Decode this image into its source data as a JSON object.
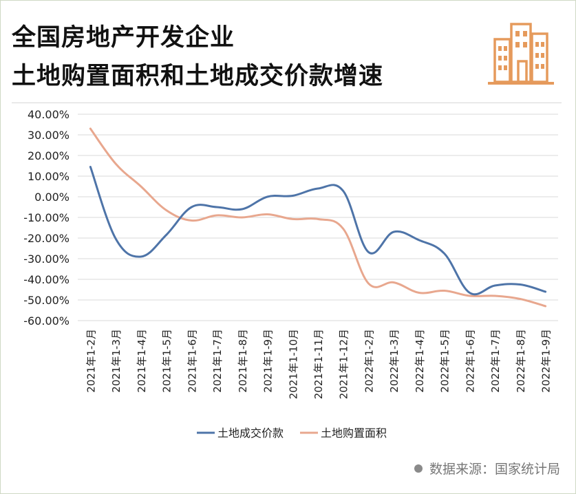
{
  "header": {
    "title_line1": "全国房地产开发企业",
    "title_line2": "土地购置面积和土地成交价款增速",
    "logo_icon": "buildings-icon"
  },
  "footer": {
    "source": "数据来源：国家统计局"
  },
  "chart_data": {
    "type": "line",
    "title": "",
    "xlabel": "",
    "ylabel": "",
    "ylim": [
      -60,
      40
    ],
    "yticks": [
      40,
      30,
      20,
      10,
      0,
      -10,
      -20,
      -30,
      -40,
      -50,
      -60
    ],
    "ytick_labels": [
      "40.00%",
      "30.00%",
      "20.00%",
      "10.00%",
      "0.00%",
      "-10.00%",
      "-20.00%",
      "-30.00%",
      "-40.00%",
      "-50.00%",
      "-60.00%"
    ],
    "grid": true,
    "legend_position": "bottom",
    "categories": [
      "2021年1-2月",
      "2021年1-3月",
      "2021年1-4月",
      "2021年1-5月",
      "2021年1-6月",
      "2021年1-7月",
      "2021年1-8月",
      "2021年1-9月",
      "2021年1-10月",
      "2021年1-11月",
      "2021年1-12月",
      "2022年1-2月",
      "2022年1-3月",
      "2022年1-4月",
      "2022年1-5月",
      "2022年1-6月",
      "2022年1-7月",
      "2022年1-8月",
      "2022年1-9月"
    ],
    "series": [
      {
        "name": "土地成交价款",
        "color": "#4e74a8",
        "values": [
          14.5,
          -20.3,
          -29.0,
          -18.5,
          -5.0,
          -5.0,
          -6.0,
          0.0,
          0.5,
          4.0,
          2.8,
          -26.8,
          -17.0,
          -21.0,
          -27.5,
          -46.5,
          -43.0,
          -42.5,
          -46.0
        ]
      },
      {
        "name": "土地购置面积",
        "color": "#e8a78e",
        "values": [
          33.0,
          16.0,
          5.0,
          -6.5,
          -11.5,
          -9.0,
          -10.0,
          -8.5,
          -10.8,
          -10.8,
          -15.5,
          -42.0,
          -41.5,
          -46.5,
          -45.5,
          -48.0,
          -48.0,
          -49.5,
          -53.0
        ]
      }
    ]
  }
}
